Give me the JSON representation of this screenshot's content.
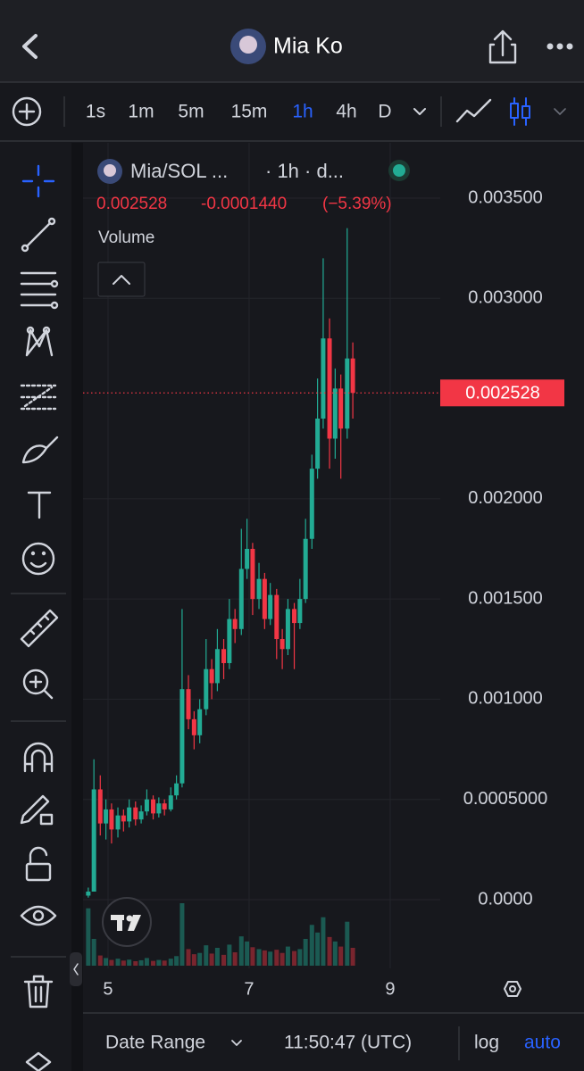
{
  "header": {
    "title": "Mia Ko"
  },
  "toolbar": {
    "intervals": [
      "1s",
      "1m",
      "5m",
      "15m",
      "1h",
      "4h",
      "D"
    ]
  },
  "chart_data": {
    "type": "candlestick",
    "symbol": "Mia/SOL ...",
    "interval_text": "· 1h · d...",
    "price_text": "0.002528",
    "change_text": "-0.0001440",
    "percent_text": "(−5.39%)",
    "volume_label": "Volume",
    "last_price": 0.002528,
    "up_color": "#22ab94",
    "down_color": "#f23645",
    "grid": true,
    "xlim": [
      4.646,
      9.709
    ],
    "xticks": [
      5,
      7,
      9
    ],
    "ylim": [
      -0.000343,
      0.003776
    ],
    "yticks": [
      {
        "value": 0,
        "label": "0.0000"
      },
      {
        "value": 0.0005,
        "label": "0.0005000"
      },
      {
        "value": 0.001,
        "label": "0.001000"
      },
      {
        "value": 0.0015,
        "label": "0.001500"
      },
      {
        "value": 0.002,
        "label": "0.002000"
      },
      {
        "value": 0.003,
        "label": "0.003000"
      },
      {
        "value": 0.0035,
        "label": "0.003500"
      }
    ],
    "x": [
      4.72,
      4.8,
      4.89,
      4.97,
      5.05,
      5.14,
      5.22,
      5.3,
      5.39,
      5.47,
      5.55,
      5.64,
      5.72,
      5.8,
      5.89,
      5.97,
      6.05,
      6.14,
      6.22,
      6.3,
      6.39,
      6.47,
      6.55,
      6.64,
      6.72,
      6.8,
      6.89,
      6.97,
      7.05,
      7.14,
      7.22,
      7.3,
      7.39,
      7.47,
      7.55,
      7.64,
      7.72,
      7.8,
      7.89,
      7.97,
      8.05,
      8.14,
      8.22,
      8.3,
      8.39,
      8.47
    ],
    "open": [
      2e-05,
      4e-05,
      0.00055,
      0.00038,
      0.00045,
      0.00035,
      0.00042,
      0.00039,
      0.00046,
      0.0004,
      0.00044,
      0.0005,
      0.00043,
      0.00048,
      0.00045,
      0.00052,
      0.00058,
      0.00105,
      0.0009,
      0.00082,
      0.00095,
      0.00115,
      0.00108,
      0.00125,
      0.00118,
      0.0014,
      0.00135,
      0.00165,
      0.00175,
      0.0015,
      0.0016,
      0.0014,
      0.00152,
      0.0013,
      0.00125,
      0.00145,
      0.00138,
      0.0015,
      0.0018,
      0.00215,
      0.0024,
      0.0028,
      0.0023,
      0.00255,
      0.00235,
      0.0027
    ],
    "high": [
      6e-05,
      0.0007,
      0.00062,
      0.0005,
      0.00048,
      0.00046,
      0.00045,
      0.0005,
      0.00049,
      0.00047,
      0.00055,
      0.00052,
      0.00051,
      0.0005,
      0.00056,
      0.00062,
      0.00145,
      0.00112,
      0.00094,
      0.001,
      0.0013,
      0.0012,
      0.00135,
      0.0013,
      0.0015,
      0.00145,
      0.00185,
      0.0019,
      0.00178,
      0.00168,
      0.00163,
      0.00158,
      0.00155,
      0.00135,
      0.0015,
      0.00148,
      0.0016,
      0.0019,
      0.00222,
      0.0026,
      0.0032,
      0.0029,
      0.00265,
      0.00262,
      0.00335,
      0.00278
    ],
    "low": [
      1e-05,
      4e-05,
      0.00032,
      0.0003,
      0.00028,
      0.00031,
      0.00034,
      0.00036,
      0.00037,
      0.00038,
      0.00042,
      0.0004,
      0.00041,
      0.00042,
      0.00044,
      0.0005,
      0.00056,
      0.00085,
      0.00075,
      0.00078,
      0.00092,
      0.001,
      0.00104,
      0.0011,
      0.00115,
      0.00128,
      0.00132,
      0.0016,
      0.00142,
      0.00145,
      0.00135,
      0.00137,
      0.0012,
      0.00115,
      0.00122,
      0.00115,
      0.00135,
      0.00148,
      0.00175,
      0.0021,
      0.00235,
      0.00215,
      0.0022,
      0.0021,
      0.0023,
      0.0024
    ],
    "close": [
      4e-05,
      0.00055,
      0.00038,
      0.00045,
      0.00035,
      0.00042,
      0.00039,
      0.00046,
      0.0004,
      0.00044,
      0.0005,
      0.00043,
      0.00048,
      0.00045,
      0.00052,
      0.00058,
      0.00105,
      0.0009,
      0.00082,
      0.00095,
      0.00115,
      0.00108,
      0.00125,
      0.00118,
      0.0014,
      0.00135,
      0.00165,
      0.00175,
      0.0015,
      0.0016,
      0.0014,
      0.00152,
      0.0013,
      0.00125,
      0.00145,
      0.00138,
      0.0015,
      0.0018,
      0.00215,
      0.0024,
      0.0028,
      0.0023,
      0.00255,
      0.00235,
      0.0027,
      0.002528
    ],
    "volume": [
      900,
      420,
      160,
      120,
      90,
      110,
      80,
      95,
      70,
      85,
      120,
      75,
      90,
      80,
      110,
      150,
      980,
      260,
      180,
      200,
      320,
      190,
      280,
      170,
      330,
      210,
      460,
      380,
      290,
      260,
      240,
      220,
      250,
      200,
      300,
      230,
      260,
      420,
      640,
      520,
      760,
      450,
      380,
      300,
      690,
      280
    ]
  },
  "footer": {
    "date_range": "Date Range",
    "time": "11:50:47 (UTC)",
    "log": "log",
    "auto": "auto"
  }
}
